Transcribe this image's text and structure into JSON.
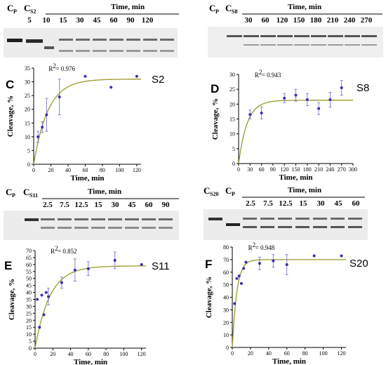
{
  "gels": {
    "top_left": {
      "cp": "C",
      "cp_sub": "P",
      "cs": "C",
      "cs_sub": "S2",
      "time_title": "Time, min",
      "lanes": [
        "5",
        "10",
        "15",
        "30",
        "45",
        "60",
        "90",
        "120"
      ]
    },
    "top_right": {
      "cp": "C",
      "cp_sub": "P",
      "cs": "C",
      "cs_sub": "S8",
      "time_title": "Time, min",
      "lanes": [
        "30",
        "60",
        "120",
        "150",
        "180",
        "210",
        "240",
        "270"
      ]
    },
    "mid_left": {
      "cp": "C",
      "cp_sub": "P",
      "cs": "C",
      "cs_sub": "S11",
      "time_title": "Time, min",
      "lanes": [
        "2.5",
        "7.5",
        "12.5",
        "15",
        "30",
        "45",
        "60",
        "90"
      ]
    },
    "mid_right": {
      "cp": "C",
      "cp_sub": "P",
      "cs": "C",
      "cs_sub": "S20",
      "time_title": "Time, min",
      "lanes": [
        "2.5",
        "7.5",
        "12.5",
        "15",
        "30",
        "45",
        "60"
      ]
    }
  },
  "colors": {
    "curve": "#9a9a2a",
    "point": "#3b2fb0",
    "error_bar": "#6c6ac0",
    "gel_bg": "#ededed",
    "gel_band": "#2a2a2a"
  },
  "chart_data": [
    {
      "type": "scatter",
      "panel": "C",
      "sample": "S2",
      "r2_label": "R",
      "r2_sup": "2",
      "r2_value": "= 0.976",
      "xlabel": "Time, min",
      "ylabel": "Cleavage, %",
      "xlim": [
        0,
        125
      ],
      "ylim": [
        0,
        35
      ],
      "xticks": [
        "0",
        "20",
        "40",
        "60",
        "80",
        "100",
        "120"
      ],
      "yticks": [
        "0",
        "5",
        "10",
        "15",
        "20",
        "25",
        "30",
        "35"
      ],
      "points": [
        {
          "x": 5,
          "y": 10,
          "err": 2
        },
        {
          "x": 10,
          "y": 13.5,
          "err": 2
        },
        {
          "x": 15,
          "y": 18,
          "err": 6
        },
        {
          "x": 30,
          "y": 24.5,
          "err": 6.5
        },
        {
          "x": 60,
          "y": 32,
          "err": 0
        },
        {
          "x": 90,
          "y": 28,
          "err": 0
        },
        {
          "x": 120,
          "y": 32,
          "err": 0
        }
      ],
      "fit": {
        "ymax": 31,
        "k": 0.06
      }
    },
    {
      "type": "scatter",
      "panel": "D",
      "sample": "S8",
      "r2_label": "R",
      "r2_sup": "2",
      "r2_value": "= 0.943",
      "xlabel": "Time, min",
      "ylabel": "Cleavage, %",
      "xlim": [
        0,
        300
      ],
      "ylim": [
        0,
        30
      ],
      "xticks": [
        "0",
        "30",
        "60",
        "90",
        "120",
        "150",
        "180",
        "210",
        "240",
        "270",
        "300"
      ],
      "yticks": [
        "0",
        "5",
        "10",
        "15",
        "20",
        "25",
        "30"
      ],
      "points": [
        {
          "x": 30,
          "y": 16.5,
          "err": 1.5
        },
        {
          "x": 60,
          "y": 17,
          "err": 2
        },
        {
          "x": 120,
          "y": 22,
          "err": 1.5
        },
        {
          "x": 150,
          "y": 23,
          "err": 2
        },
        {
          "x": 180,
          "y": 21.5,
          "err": 2
        },
        {
          "x": 210,
          "y": 18.5,
          "err": 2
        },
        {
          "x": 240,
          "y": 21.5,
          "err": 2.5
        },
        {
          "x": 270,
          "y": 25.5,
          "err": 2.5
        }
      ],
      "fit": {
        "ymax": 21.3,
        "k": 0.045
      }
    },
    {
      "type": "scatter",
      "panel": "E",
      "sample": "S11",
      "r2_label": "R",
      "r2_sup": "2",
      "r2_value": "= 0.852",
      "xlabel": "Time, min",
      "ylabel": "Cleavage, %",
      "xlim": [
        0,
        125
      ],
      "ylim": [
        0,
        70
      ],
      "xticks": [
        "0",
        "20",
        "40",
        "60",
        "80",
        "100",
        "120"
      ],
      "yticks": [
        "0",
        "5",
        "10",
        "15",
        "20",
        "25",
        "30",
        "35",
        "40",
        "45",
        "50",
        "55",
        "60",
        "65",
        "70"
      ],
      "points": [
        {
          "x": 2.5,
          "y": 35,
          "err": 0
        },
        {
          "x": 5,
          "y": 15,
          "err": 0
        },
        {
          "x": 7.5,
          "y": 38,
          "err": 0
        },
        {
          "x": 10,
          "y": 24,
          "err": 0
        },
        {
          "x": 12.5,
          "y": 40,
          "err": 0
        },
        {
          "x": 15,
          "y": 37,
          "err": 6
        },
        {
          "x": 30,
          "y": 47,
          "err": 4
        },
        {
          "x": 45,
          "y": 56,
          "err": 8
        },
        {
          "x": 60,
          "y": 57,
          "err": 5
        },
        {
          "x": 90,
          "y": 63,
          "err": 6
        },
        {
          "x": 120,
          "y": 60,
          "err": 0
        }
      ],
      "fit": {
        "ymax": 59,
        "k": 0.06
      }
    },
    {
      "type": "scatter",
      "panel": "F",
      "sample": "S20",
      "r2_label": "R",
      "r2_sup": "2",
      "r2_value": "= 0.948",
      "xlabel": "Time, min",
      "ylabel": "Cleavage, %",
      "xlim": [
        0,
        125
      ],
      "ylim": [
        0,
        80
      ],
      "xticks": [
        "0",
        "20",
        "40",
        "60",
        "80",
        "100",
        "120"
      ],
      "yticks": [
        "0",
        "10",
        "20",
        "30",
        "40",
        "50",
        "60",
        "70",
        "80"
      ],
      "points": [
        {
          "x": 2.5,
          "y": 35,
          "err": 0
        },
        {
          "x": 5,
          "y": 55,
          "err": 0
        },
        {
          "x": 7.5,
          "y": 57,
          "err": 0
        },
        {
          "x": 10,
          "y": 51,
          "err": 0
        },
        {
          "x": 12.5,
          "y": 63,
          "err": 0
        },
        {
          "x": 15,
          "y": 68,
          "err": 0
        },
        {
          "x": 30,
          "y": 67,
          "err": 5
        },
        {
          "x": 45,
          "y": 69,
          "err": 5
        },
        {
          "x": 60,
          "y": 66,
          "err": 8
        },
        {
          "x": 90,
          "y": 73,
          "err": 0
        },
        {
          "x": 120,
          "y": 73,
          "err": 0
        }
      ],
      "fit": {
        "ymax": 70,
        "k": 0.2
      }
    }
  ]
}
